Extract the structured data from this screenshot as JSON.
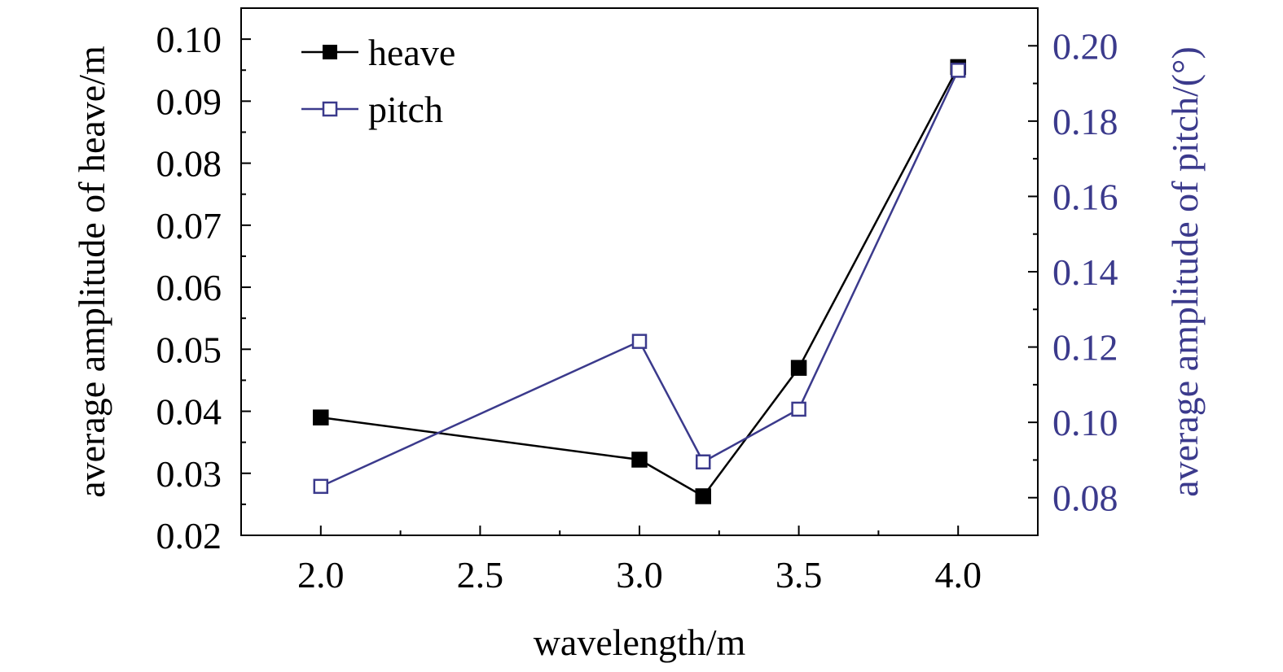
{
  "colors": {
    "heave": "#000000",
    "pitch": "#3b3a8c",
    "axis": "#000000"
  },
  "chart_data": {
    "type": "line",
    "xlabel": "wavelength/m",
    "ylabel": "average amplitude of heave/m",
    "y2label": "average amplitude of pitch/(°)",
    "xlim": [
      1.75,
      4.25
    ],
    "ylim": [
      0.02,
      0.105
    ],
    "y2lim": [
      0.07,
      0.21
    ],
    "xticks": [
      2.0,
      2.5,
      3.0,
      3.5,
      4.0
    ],
    "xtick_labels": [
      "2.0",
      "2.5",
      "3.0",
      "3.5",
      "4.0"
    ],
    "yticks": [
      0.02,
      0.03,
      0.04,
      0.05,
      0.06,
      0.07,
      0.08,
      0.09,
      0.1
    ],
    "ytick_labels": [
      "0.02",
      "0.03",
      "0.04",
      "0.05",
      "0.06",
      "0.07",
      "0.08",
      "0.09",
      "0.10"
    ],
    "y2ticks": [
      0.08,
      0.1,
      0.12,
      0.14,
      0.16,
      0.18,
      0.2
    ],
    "y2tick_labels": [
      "0.08",
      "0.10",
      "0.12",
      "0.14",
      "0.16",
      "0.18",
      "0.20"
    ],
    "legend_position": "top-left",
    "grid": false,
    "series": [
      {
        "name": "heave",
        "axis": "left",
        "marker": "filled-square",
        "x": [
          2.0,
          3.0,
          3.2,
          3.5,
          4.0
        ],
        "y": [
          0.039,
          0.0322,
          0.0263,
          0.047,
          0.0955
        ]
      },
      {
        "name": "pitch",
        "axis": "right",
        "marker": "open-square",
        "x": [
          2.0,
          3.0,
          3.2,
          3.5,
          4.0
        ],
        "y": [
          0.083,
          0.1215,
          0.0895,
          0.1035,
          0.1935
        ]
      }
    ]
  }
}
